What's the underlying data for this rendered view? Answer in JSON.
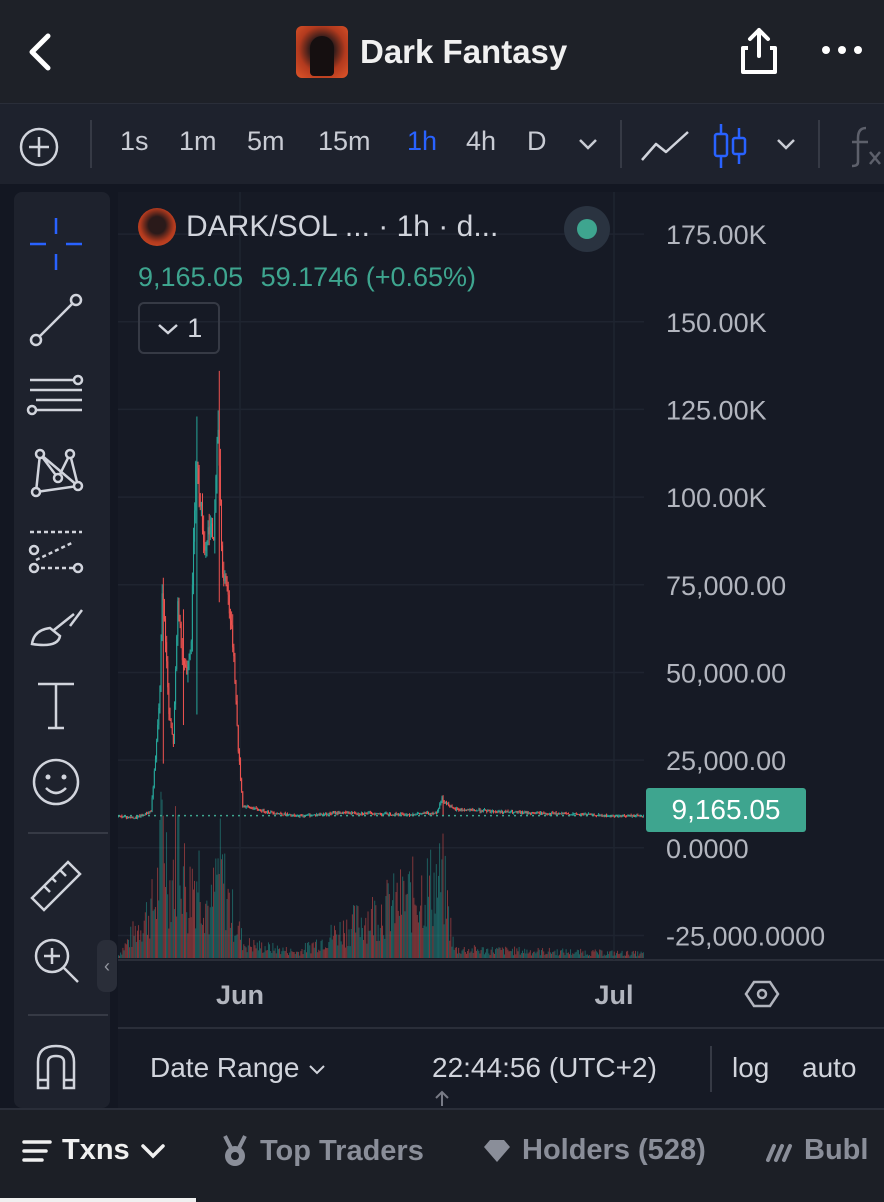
{
  "header": {
    "title": "Dark Fantasy"
  },
  "toolbar": {
    "intervals": [
      "1s",
      "1m",
      "5m",
      "15m",
      "1h",
      "4h",
      "D"
    ],
    "active_interval": "1h"
  },
  "legend": {
    "symbol": "DARK/SOL ...  · 1h · d...",
    "price": "9,165.05",
    "change": "59.1746 (+0.65%)",
    "indicator_count": "1"
  },
  "price_tag": "9,165.05",
  "bottom": {
    "date_range": "Date Range",
    "time": "22:44:56 (UTC+2)",
    "log": "log",
    "auto": "auto"
  },
  "tabs": {
    "txns": "Txns",
    "top_traders": "Top Traders",
    "holders": "Holders (528)",
    "bubble": "Bubl"
  },
  "chart_data": {
    "type": "candlestick",
    "ylim": [
      -32000,
      187000
    ],
    "y_tick_labels": [
      "175.00K",
      "150.00K",
      "125.00K",
      "100.00K",
      "75,000.00",
      "50,000.00",
      "25,000.00",
      "0.0000",
      "-25,000.0000"
    ],
    "y_tick_values": [
      175000,
      150000,
      125000,
      100000,
      75000,
      50000,
      25000,
      0,
      -25000
    ],
    "x_tick_labels": [
      "Jun",
      "Jul"
    ],
    "last_price": 9165.05,
    "colors": {
      "up": "#26a69a",
      "down": "#ef5350",
      "grid": "#1f2430",
      "price_line": "#3ea58f",
      "axis_text": "#b2b5be",
      "background": "#161a25"
    },
    "price_key_points": [
      [
        0,
        9000
      ],
      [
        16,
        8500
      ],
      [
        24,
        9500
      ],
      [
        30,
        10500
      ],
      [
        34,
        25000
      ],
      [
        38,
        45000
      ],
      [
        40,
        74000
      ],
      [
        43,
        60000
      ],
      [
        46,
        38000
      ],
      [
        50,
        30000
      ],
      [
        54,
        70000
      ],
      [
        58,
        55000
      ],
      [
        62,
        50000
      ],
      [
        66,
        60000
      ],
      [
        70,
        112000
      ],
      [
        74,
        100000
      ],
      [
        78,
        85000
      ],
      [
        82,
        92000
      ],
      [
        86,
        88000
      ],
      [
        90,
        120000
      ],
      [
        94,
        78000
      ],
      [
        98,
        75000
      ],
      [
        104,
        55000
      ],
      [
        108,
        28000
      ],
      [
        112,
        12000
      ],
      [
        130,
        10500
      ],
      [
        160,
        9000
      ],
      [
        200,
        10000
      ],
      [
        260,
        9500
      ],
      [
        285,
        10000
      ],
      [
        290,
        14000
      ],
      [
        300,
        11000
      ],
      [
        360,
        10000
      ],
      [
        420,
        9500
      ],
      [
        440,
        9000
      ],
      [
        470,
        9165
      ]
    ],
    "spikes": [
      [
        40,
        77000,
        24000
      ],
      [
        70,
        123000,
        38000
      ],
      [
        90,
        136000,
        70000
      ],
      [
        58,
        68000,
        35000
      ],
      [
        290,
        15000,
        9000
      ]
    ],
    "volume_key_points": [
      [
        0,
        0.02
      ],
      [
        34,
        0.4
      ],
      [
        40,
        0.95
      ],
      [
        46,
        0.5
      ],
      [
        54,
        0.85
      ],
      [
        62,
        0.4
      ],
      [
        66,
        0.55
      ],
      [
        72,
        0.6
      ],
      [
        82,
        0.3
      ],
      [
        90,
        0.65
      ],
      [
        100,
        0.35
      ],
      [
        112,
        0.1
      ],
      [
        160,
        0.04
      ],
      [
        290,
        0.55
      ],
      [
        300,
        0.06
      ],
      [
        470,
        0.03
      ]
    ]
  }
}
